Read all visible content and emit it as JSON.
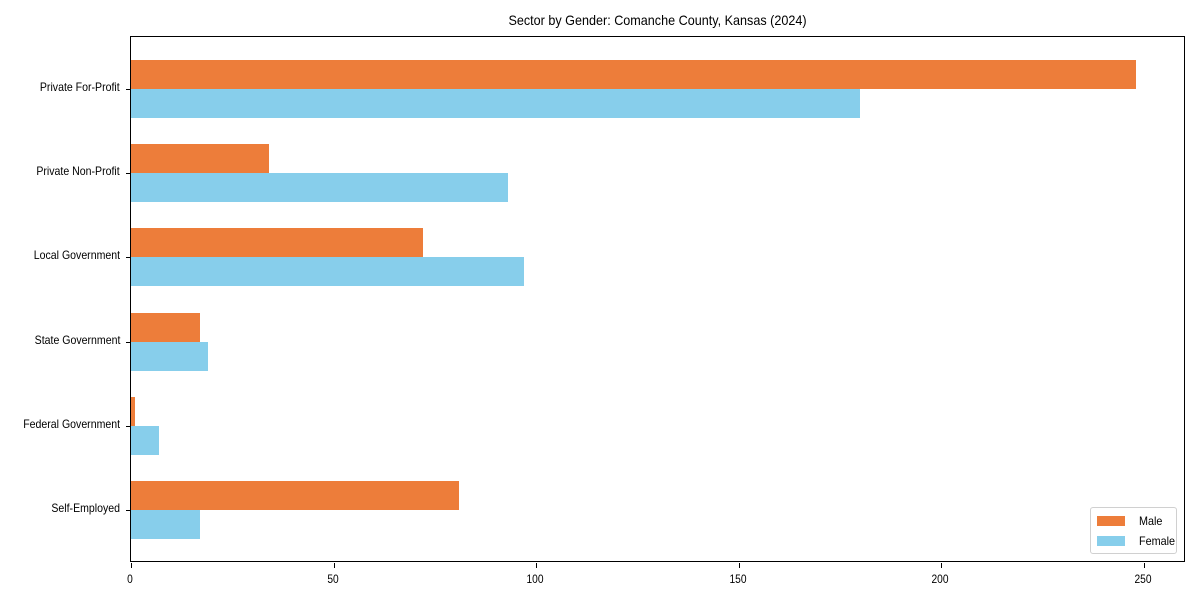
{
  "chart_data": {
    "type": "bar",
    "orientation": "horizontal",
    "title": "Sector by Gender: Comanche County, Kansas (2024)",
    "xlabel": "",
    "ylabel": "",
    "categories": [
      "Private For-Profit",
      "Private Non-Profit",
      "Local Government",
      "State Government",
      "Federal Government",
      "Self-Employed"
    ],
    "series": [
      {
        "name": "Male",
        "color": "#ED7D3A",
        "values": [
          248,
          34,
          72,
          17,
          1,
          81
        ]
      },
      {
        "name": "Female",
        "color": "#87CEEB",
        "values": [
          180,
          93,
          97,
          19,
          7,
          17
        ]
      }
    ],
    "xlim": [
      0,
      260
    ],
    "xticks": [
      0,
      50,
      100,
      150,
      200,
      250
    ],
    "xtick_labels": [
      "0",
      "50",
      "100",
      "150",
      "200",
      "250"
    ],
    "grid": false,
    "legend_position": "lower right"
  },
  "legend": {
    "items": [
      {
        "label": "Male",
        "color": "#ED7D3A"
      },
      {
        "label": "Female",
        "color": "#87CEEB"
      }
    ]
  }
}
